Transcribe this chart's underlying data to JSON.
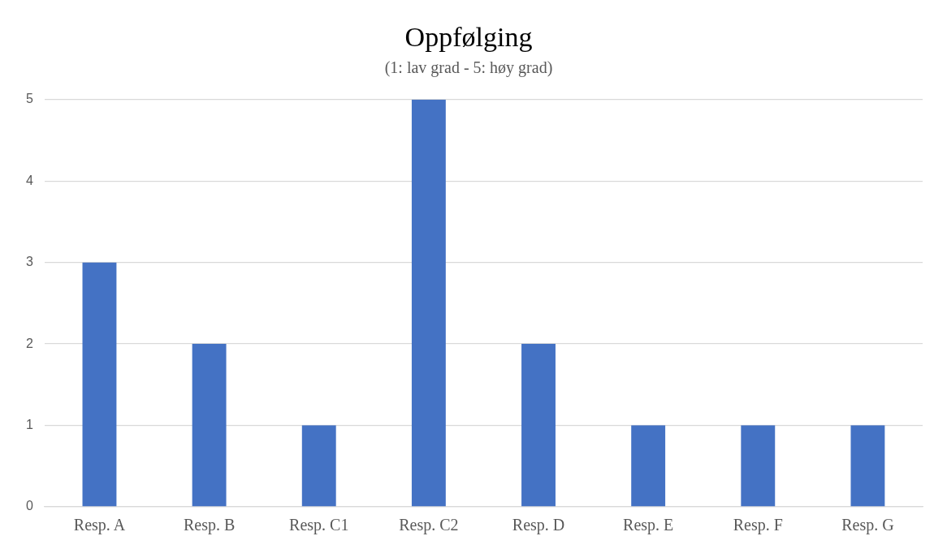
{
  "chart_data": {
    "type": "bar",
    "title": "Oppfølging",
    "subtitle": "(1: lav grad - 5: høy grad)",
    "categories": [
      "Resp. A",
      "Resp. B",
      "Resp. C1",
      "Resp. C2",
      "Resp. D",
      "Resp. E",
      "Resp. F",
      "Resp. G"
    ],
    "values": [
      3,
      2,
      1,
      5,
      2,
      1,
      1,
      1
    ],
    "color": "#4472c4",
    "ylim": [
      0,
      5
    ],
    "yticks": [
      0,
      1,
      2,
      3,
      4,
      5
    ],
    "grid": "y",
    "legend": false
  }
}
